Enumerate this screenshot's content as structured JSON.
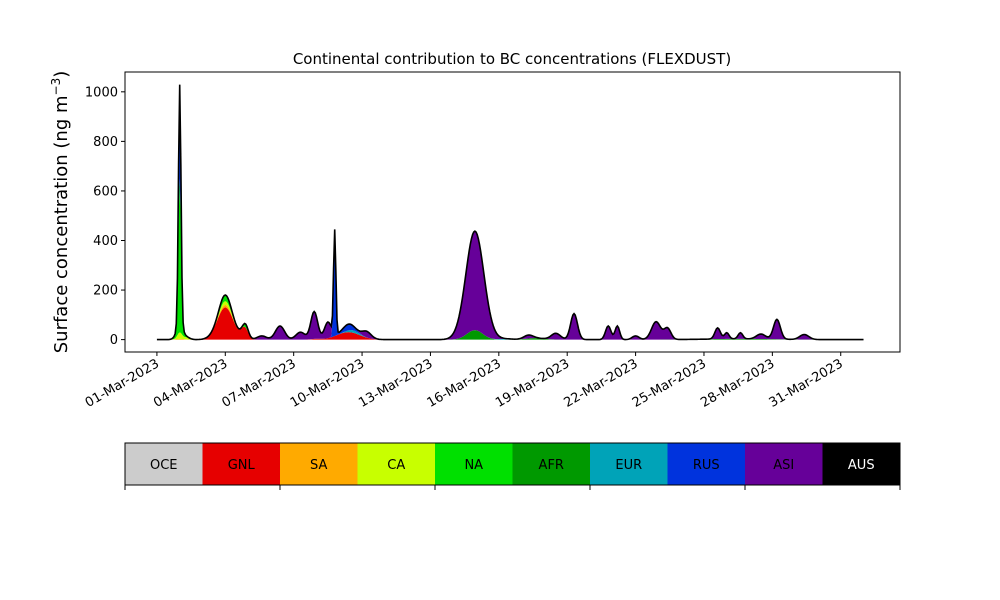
{
  "chart_data": {
    "type": "area",
    "title": "Continental contribution to BC concentrations (FLEXDUST)",
    "ylabel_main": "Surface concentration (ng m",
    "ylabel_sup": "−3",
    "ylabel_close": ")",
    "ylim": [
      -50,
      1080
    ],
    "yticks": [
      0,
      200,
      400,
      600,
      800,
      1000
    ],
    "ytick_labels": [
      "0",
      "200",
      "400",
      "600",
      "800",
      "1000"
    ],
    "xlim_days": [
      -1.4,
      32.6
    ],
    "x_tick_labels": [
      "01-Mar-2023",
      "04-Mar-2023",
      "07-Mar-2023",
      "10-Mar-2023",
      "13-Mar-2023",
      "16-Mar-2023",
      "19-Mar-2023",
      "22-Mar-2023",
      "25-Mar-2023",
      "28-Mar-2023",
      "31-Mar-2023"
    ],
    "x_tick_days": [
      0,
      3,
      6,
      9,
      12,
      15,
      18,
      21,
      24,
      27,
      30
    ],
    "x_start_day": 0,
    "x_end_day": 31,
    "grid": false,
    "legend_placement": "bottom colorbar",
    "series": [
      {
        "name": "OCE",
        "color": "#cccccc",
        "peaks": []
      },
      {
        "name": "GNL",
        "color": "#e60000",
        "peaks": [
          [
            3.0,
            0.35,
            130
          ],
          [
            3.85,
            0.15,
            45
          ],
          [
            8.4,
            0.5,
            30
          ],
          [
            7.0,
            0.2,
            3
          ]
        ]
      },
      {
        "name": "SA",
        "color": "#ffaa00",
        "peaks": [
          [
            1.0,
            0.2,
            3
          ],
          [
            3.0,
            0.2,
            10
          ]
        ]
      },
      {
        "name": "CA",
        "color": "#c8ff00",
        "peaks": [
          [
            1.0,
            0.1,
            25
          ],
          [
            3.0,
            0.25,
            15
          ],
          [
            1.3,
            0.15,
            8
          ]
        ]
      },
      {
        "name": "NA",
        "color": "#00e000",
        "peaks": [
          [
            1.0,
            0.06,
            580
          ],
          [
            3.0,
            0.25,
            25
          ],
          [
            1.0,
            0.15,
            40
          ],
          [
            3.9,
            0.1,
            15
          ]
        ]
      },
      {
        "name": "AFR",
        "color": "#009900",
        "peaks": [
          [
            13.95,
            0.35,
            38
          ],
          [
            16.6,
            0.4,
            6
          ],
          [
            25.6,
            1.5,
            3
          ]
        ]
      },
      {
        "name": "EUR",
        "color": "#00a3b8",
        "peaks": [
          [
            8.6,
            0.25,
            10
          ],
          [
            15.3,
            0.3,
            3
          ]
        ]
      },
      {
        "name": "RUS",
        "color": "#0033dd",
        "peaks": [
          [
            1.0,
            0.05,
            380
          ],
          [
            7.8,
            0.05,
            420
          ],
          [
            8.4,
            0.25,
            25
          ]
        ]
      },
      {
        "name": "ASI",
        "color": "#660099",
        "peaks": [
          [
            5.4,
            0.2,
            55
          ],
          [
            6.3,
            0.2,
            30
          ],
          [
            6.9,
            0.15,
            110
          ],
          [
            7.5,
            0.15,
            65
          ],
          [
            13.95,
            0.4,
            400
          ],
          [
            16.3,
            0.2,
            14
          ],
          [
            17.5,
            0.2,
            25
          ],
          [
            18.3,
            0.15,
            105
          ],
          [
            19.8,
            0.12,
            55
          ],
          [
            20.2,
            0.1,
            55
          ],
          [
            21.0,
            0.15,
            15
          ],
          [
            21.9,
            0.2,
            72
          ],
          [
            22.4,
            0.15,
            45
          ],
          [
            24.6,
            0.12,
            45
          ],
          [
            25.0,
            0.1,
            25
          ],
          [
            25.6,
            0.1,
            25
          ],
          [
            26.5,
            0.2,
            20
          ],
          [
            27.2,
            0.15,
            80
          ],
          [
            28.4,
            0.2,
            20
          ],
          [
            4.6,
            0.2,
            15
          ],
          [
            9.2,
            0.2,
            25
          ]
        ]
      },
      {
        "name": "AUS",
        "color": "#000000",
        "peaks": []
      }
    ]
  }
}
